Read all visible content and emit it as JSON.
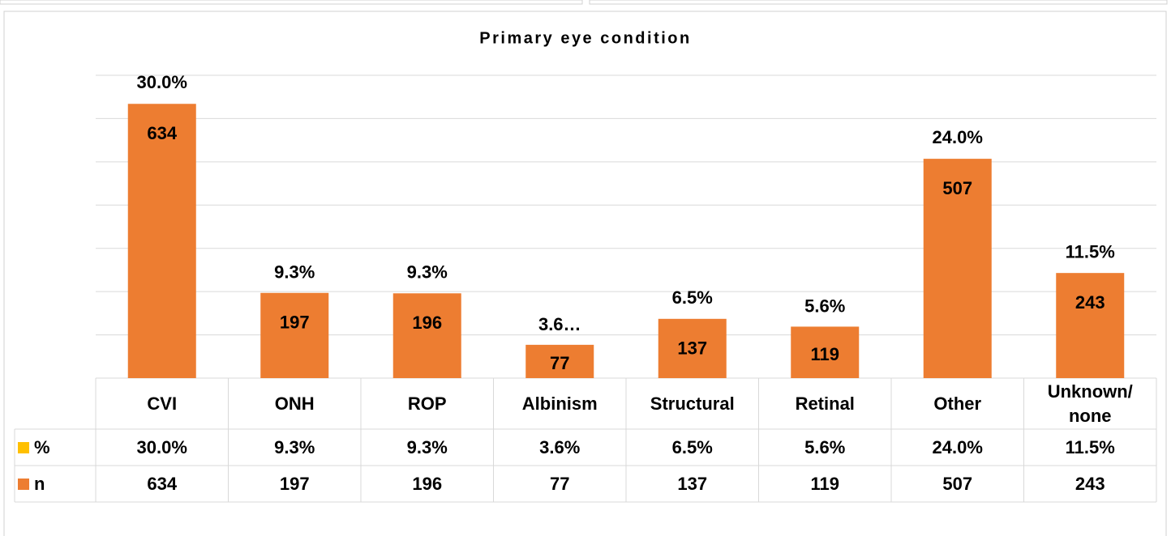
{
  "chart_data": {
    "type": "bar",
    "title": "Primary eye condition",
    "categories": [
      "CVI",
      "ONH",
      "ROP",
      "Albinism",
      "Structural",
      "Retinal",
      "Other",
      "Unknown/ none"
    ],
    "series": [
      {
        "name": "%",
        "color": "#FFC000",
        "axis": "y2",
        "values": [
          30.0,
          9.3,
          9.3,
          3.6,
          6.5,
          5.6,
          24.0,
          11.5
        ],
        "value_labels": [
          "30.0%",
          "9.3%",
          "9.3%",
          "3.6%",
          "6.5%",
          "5.6%",
          "24.0%",
          "11.5%"
        ],
        "bar_labels": [
          "30.0%",
          "9.3%",
          "9.3%",
          "3.6…",
          "6.5%",
          "5.6%",
          "24.0%",
          "11.5%"
        ]
      },
      {
        "name": "n",
        "color": "#ED7D31",
        "values": [
          634,
          197,
          196,
          77,
          137,
          119,
          507,
          243
        ]
      }
    ],
    "ylim": [
      0,
      700
    ],
    "yticks": [
      0,
      100,
      200,
      300,
      400,
      500,
      600,
      700
    ],
    "y2lim": [
      0,
      33
    ],
    "grid": true
  }
}
